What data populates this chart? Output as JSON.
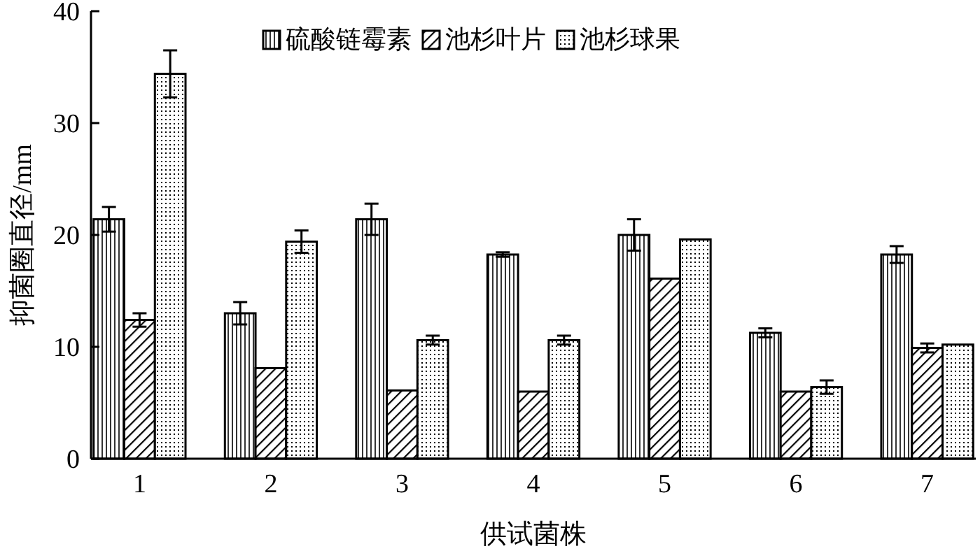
{
  "chart_data": {
    "type": "bar",
    "xlabel": "供试菌株",
    "ylabel": "抑菌圈直径/mm",
    "categories": [
      "1",
      "2",
      "3",
      "4",
      "5",
      "6",
      "7"
    ],
    "series": [
      {
        "name": "硫酸链霉素",
        "color": "#000000",
        "values": [
          21.4,
          13.0,
          21.4,
          18.25,
          20.0,
          11.25,
          18.25
        ],
        "errors": [
          1.1,
          1.0,
          1.4,
          0.2,
          1.4,
          0.4,
          0.75
        ]
      },
      {
        "name": "池杉叶片",
        "color": "#000000",
        "values": [
          12.4,
          8.1,
          6.1,
          6.0,
          16.1,
          6.0,
          9.9
        ],
        "errors": [
          0.6,
          null,
          null,
          null,
          null,
          null,
          0.4
        ]
      },
      {
        "name": "池杉球果",
        "color": "#000000",
        "values": [
          34.4,
          19.4,
          10.6,
          10.6,
          19.6,
          6.4,
          10.2
        ],
        "errors": [
          2.1,
          1.0,
          0.4,
          0.4,
          null,
          0.6,
          null
        ]
      }
    ],
    "ylim": [
      0,
      40
    ],
    "yticks": [
      0,
      10,
      20,
      30,
      40
    ],
    "legend": "top",
    "grid": false
  }
}
